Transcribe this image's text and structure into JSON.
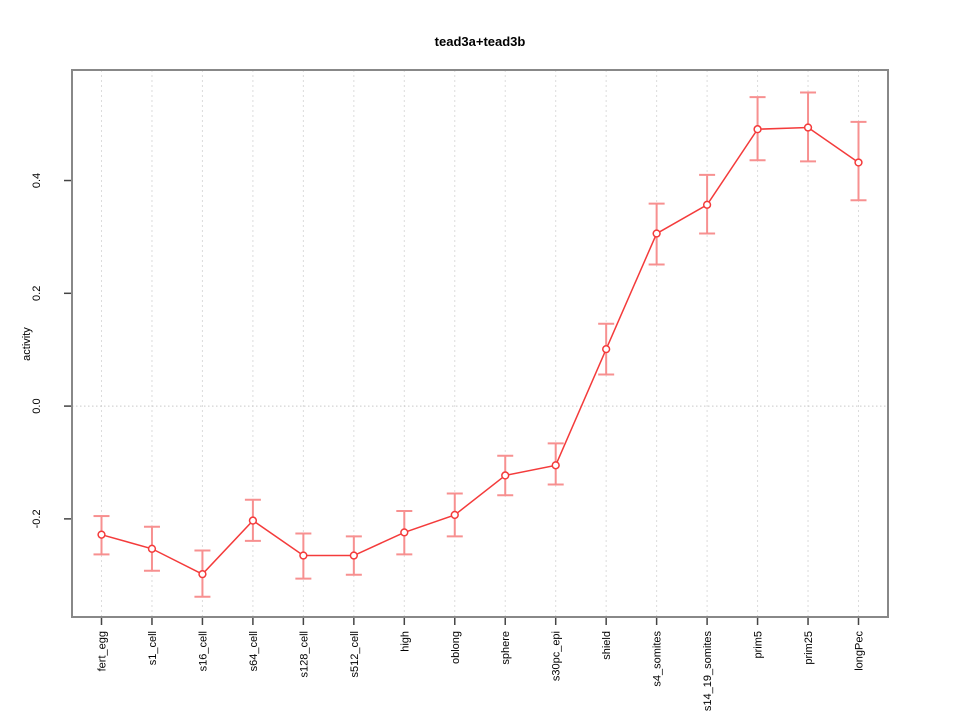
{
  "chart_data": {
    "type": "line",
    "title": "tead3a+tead3b",
    "xlabel": "",
    "ylabel": "activity",
    "categories": [
      "fert_egg",
      "s1_cell",
      "s16_cell",
      "s64_cell",
      "s128_cell",
      "s512_cell",
      "high",
      "oblong",
      "sphere",
      "s30pc_epi",
      "shield",
      "s4_somites",
      "s14_19_somites",
      "prim5",
      "prim25",
      "longPec"
    ],
    "series": [
      {
        "name": "activity",
        "values": [
          -0.228,
          -0.253,
          -0.298,
          -0.203,
          -0.265,
          -0.265,
          -0.224,
          -0.193,
          -0.123,
          -0.105,
          0.101,
          0.306,
          0.357,
          0.491,
          0.494,
          0.432
        ],
        "error_low": [
          -0.263,
          -0.292,
          -0.338,
          -0.239,
          -0.306,
          -0.299,
          -0.263,
          -0.231,
          -0.158,
          -0.139,
          0.056,
          0.251,
          0.306,
          0.436,
          0.434,
          0.365
        ],
        "error_high": [
          -0.195,
          -0.214,
          -0.256,
          -0.166,
          -0.226,
          -0.231,
          -0.186,
          -0.155,
          -0.088,
          -0.066,
          0.146,
          0.359,
          0.41,
          0.548,
          0.556,
          0.504
        ]
      }
    ],
    "yticks": [
      -0.2,
      0.0,
      0.2,
      0.4
    ],
    "ytick_labels": [
      "-0.2",
      "0.0",
      "0.2",
      "0.4"
    ],
    "ylim": [
      -0.374,
      0.596
    ],
    "grid": "vertical-dashed-per-category-plus-dotted-zero-line",
    "legend": "none",
    "marker": "open-circle",
    "colors": {
      "series_line": "#f43b3b",
      "marker_stroke": "#f43b3b",
      "error_bar": "#f79090",
      "grid_line": "#dcdcdc",
      "zero_line": "#c9c9c9",
      "plot_border": "#888888",
      "tick_mark": "#444444",
      "text": "#000000"
    }
  }
}
